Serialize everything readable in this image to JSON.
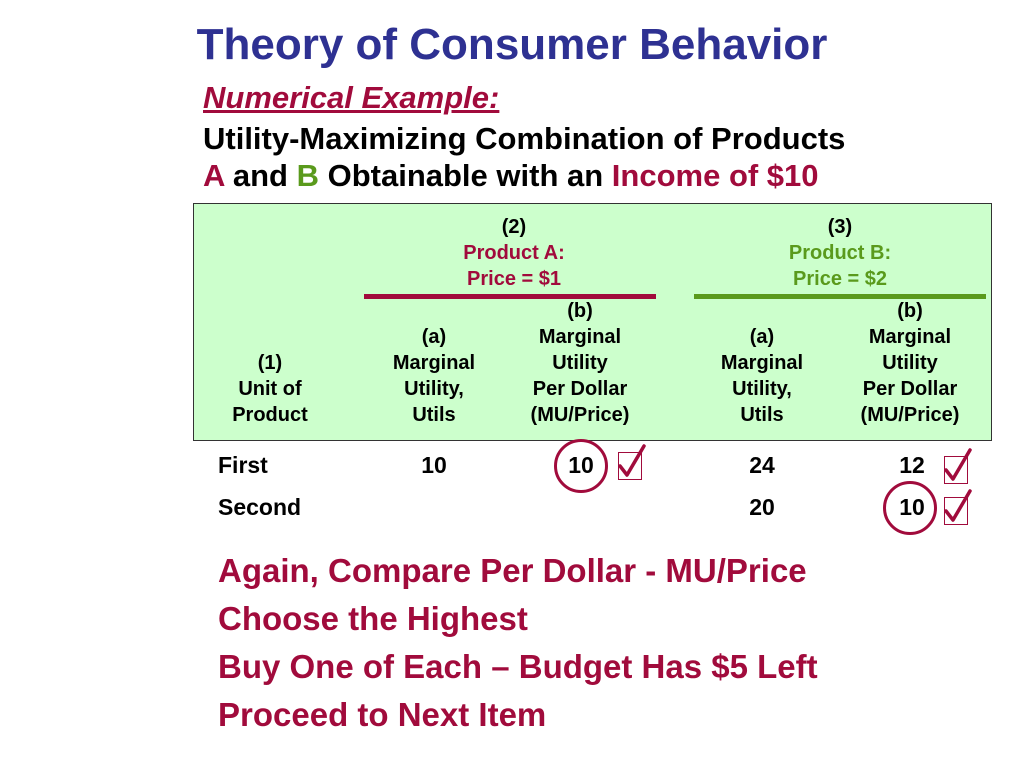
{
  "title": "Theory of Consumer Behavior",
  "subtitle": "Numerical Example:",
  "heading": {
    "line1": "Utility-Maximizing Combination of Products",
    "a": "A",
    "and": " and ",
    "b": "B",
    "obtainable": " Obtainable with an ",
    "income": "Income of $10"
  },
  "table": {
    "col1": [
      "(1)",
      "Unit of",
      "Product"
    ],
    "productA": {
      "num": "(2)",
      "name": "Product A:",
      "price": "Price = $1"
    },
    "productB": {
      "num": "(3)",
      "name": "Product B:",
      "price": "Price = $2"
    },
    "sub_a": [
      "(a)",
      "Marginal",
      "Utility,",
      "Utils"
    ],
    "sub_b": [
      "(b)",
      "Marginal",
      "Utility",
      "Per Dollar",
      "(MU/Price)"
    ],
    "rows": [
      {
        "unit": "First",
        "a_mu": "10",
        "a_mup": "10",
        "b_mu": "24",
        "b_mup": "12"
      },
      {
        "unit": "Second",
        "a_mu": "",
        "a_mup": "",
        "b_mu": "20",
        "b_mup": "10"
      }
    ]
  },
  "colors": {
    "title": "#2e3192",
    "accent_red": "#a10b3c",
    "accent_green": "#5a9a1c",
    "table_bg": "#ccffcc"
  },
  "bottom_text": [
    "Again, Compare Per Dollar - MU/Price",
    "Choose the Highest",
    "Buy One of Each – Budget Has $5 Left",
    "Proceed to Next Item"
  ]
}
